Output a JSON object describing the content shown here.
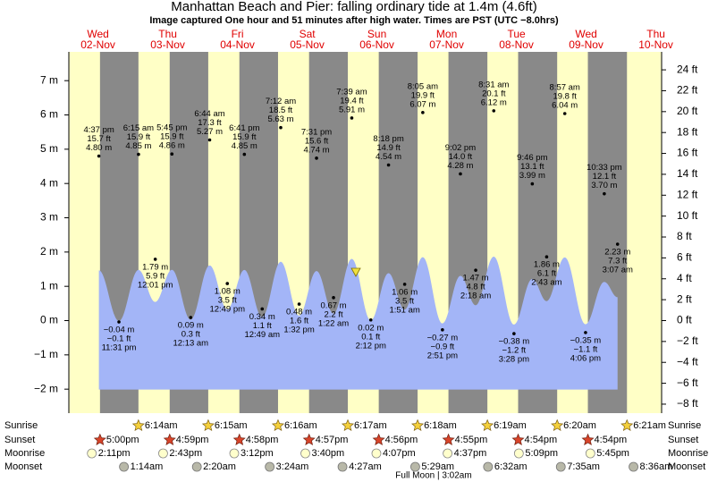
{
  "chart_data": {
    "type": "tide",
    "title": "Manhattan Beach and Pier: falling  ordinary tide at 1.4m (4.6ft)",
    "subtitle": "Image captured One hour and 51 minutes after high water. Times are PST (UTC −8.0hrs)",
    "ylim": [
      -2.7,
      7.84
    ],
    "yticks": [
      {
        "value": -2,
        "label": "−2 m"
      },
      {
        "value": -1,
        "label": "−1 m"
      },
      {
        "value": 0,
        "label": "0 m"
      },
      {
        "value": 1,
        "label": "1 m"
      },
      {
        "value": 2,
        "label": "2 m"
      },
      {
        "value": 3,
        "label": "3 m"
      },
      {
        "value": 4,
        "label": "4 m"
      },
      {
        "value": 5,
        "label": "5 m"
      },
      {
        "value": 6,
        "label": "6 m"
      },
      {
        "value": 7,
        "label": "7 m"
      }
    ],
    "y2lim": [
      -8.86,
      25.72
    ],
    "y2ticks": [
      {
        "value": -8,
        "label": "−8 ft"
      },
      {
        "value": -6,
        "label": "−6 ft"
      },
      {
        "value": -4,
        "label": "−4 ft"
      },
      {
        "value": -2,
        "label": "−2 ft"
      },
      {
        "value": 0,
        "label": "0 ft"
      },
      {
        "value": 2,
        "label": "2 ft"
      },
      {
        "value": 4,
        "label": "4 ft"
      },
      {
        "value": 6,
        "label": "6 ft"
      },
      {
        "value": 8,
        "label": "8 ft"
      },
      {
        "value": 10,
        "label": "10 ft"
      },
      {
        "value": 12,
        "label": "12 ft"
      },
      {
        "value": 14,
        "label": "14 ft"
      },
      {
        "value": 16,
        "label": "16 ft"
      },
      {
        "value": 18,
        "label": "18 ft"
      },
      {
        "value": 20,
        "label": "20 ft"
      },
      {
        "value": 22,
        "label": "22 ft"
      },
      {
        "value": 24,
        "label": "24 ft"
      }
    ],
    "curve_axis": "y2",
    "curve_color": "#a3b5f7",
    "night_color": "#898989",
    "day_color": "#ffffc6",
    "rows": [
      "Sunrise",
      "Sunset",
      "Moonrise",
      "Moonset"
    ],
    "full_moon": "Full Moon | 3:02am",
    "days": [
      {
        "dow": "Wed",
        "date": "02-Nov",
        "sunrise": null,
        "sunset": "5:00pm",
        "moonrise": "2:11pm",
        "moonset": null,
        "tides": [
          {
            "time": "4:37 pm",
            "height": 4.8,
            "height_label": "4.80 m",
            "feet_label": "15.7 ft"
          },
          {
            "time": "11:31 pm",
            "height": -0.04,
            "height_label": "−0.04 m",
            "feet_label": "−0.1 ft"
          }
        ]
      },
      {
        "dow": "Thu",
        "date": "03-Nov",
        "sunrise": "6:14am",
        "sunset": "4:59pm",
        "moonrise": "2:43pm",
        "moonset": "1:14am",
        "tides": [
          {
            "time": "6:15 am",
            "height": 4.85,
            "height_label": "4.85 m",
            "feet_label": "15.9 ft"
          },
          {
            "time": "12:01 pm",
            "height": 1.79,
            "height_label": "1.79 m",
            "feet_label": "5.9 ft"
          },
          {
            "time": "5:45 pm",
            "height": 4.86,
            "height_label": "4.86 m",
            "feet_label": "15.9 ft"
          }
        ]
      },
      {
        "dow": "Fri",
        "date": "04-Nov",
        "sunrise": "6:15am",
        "sunset": "4:58pm",
        "moonrise": "3:12pm",
        "moonset": "2:20am",
        "tides": [
          {
            "time": "12:13 am",
            "height": 0.09,
            "height_label": "0.09 m",
            "feet_label": "0.3 ft"
          },
          {
            "time": "6:44 am",
            "height": 5.27,
            "height_label": "5.27 m",
            "feet_label": "17.3 ft"
          },
          {
            "time": "12:49 pm",
            "height": 1.08,
            "height_label": "1.08 m",
            "feet_label": "3.5 ft"
          },
          {
            "time": "6:41 pm",
            "height": 4.85,
            "height_label": "4.85 m",
            "feet_label": "15.9 ft"
          }
        ]
      },
      {
        "dow": "Sat",
        "date": "05-Nov",
        "sunrise": "6:16am",
        "sunset": "4:57pm",
        "moonrise": "3:40pm",
        "moonset": "3:24am",
        "tides": [
          {
            "time": "12:49 am",
            "height": 0.34,
            "height_label": "0.34 m",
            "feet_label": "1.1 ft"
          },
          {
            "time": "7:12 am",
            "height": 5.63,
            "height_label": "5.63 m",
            "feet_label": "18.5 ft"
          },
          {
            "time": "1:32 pm",
            "height": 0.48,
            "height_label": "0.48 m",
            "feet_label": "1.6 ft"
          },
          {
            "time": "7:31 pm",
            "height": 4.74,
            "height_label": "4.74 m",
            "feet_label": "15.6 ft"
          }
        ]
      },
      {
        "dow": "Sun",
        "date": "06-Nov",
        "sunrise": "6:17am",
        "sunset": "4:56pm",
        "moonrise": "4:07pm",
        "moonset": "4:27am",
        "tides": [
          {
            "time": "1:22 am",
            "height": 0.67,
            "height_label": "0.67 m",
            "feet_label": "2.2 ft"
          },
          {
            "time": "7:39 am",
            "height": 5.91,
            "height_label": "5.91 m",
            "feet_label": "19.4 ft"
          },
          {
            "time": "2:12 pm",
            "height": 0.02,
            "height_label": "0.02 m",
            "feet_label": "0.1 ft"
          },
          {
            "time": "8:18 pm",
            "height": 4.54,
            "height_label": "4.54 m",
            "feet_label": "14.9 ft"
          }
        ]
      },
      {
        "dow": "Mon",
        "date": "07-Nov",
        "sunrise": "6:18am",
        "sunset": "4:55pm",
        "moonrise": "4:37pm",
        "moonset": "5:29am",
        "tides": [
          {
            "time": "1:51 am",
            "height": 1.06,
            "height_label": "1.06 m",
            "feet_label": "3.5 ft"
          },
          {
            "time": "8:05 am",
            "height": 6.07,
            "height_label": "6.07 m",
            "feet_label": "19.9 ft"
          },
          {
            "time": "2:51 pm",
            "height": -0.27,
            "height_label": "−0.27 m",
            "feet_label": "−0.9 ft"
          },
          {
            "time": "9:02 pm",
            "height": 4.28,
            "height_label": "4.28 m",
            "feet_label": "14.0 ft"
          }
        ]
      },
      {
        "dow": "Tue",
        "date": "08-Nov",
        "sunrise": "6:19am",
        "sunset": "4:54pm",
        "moonrise": "5:09pm",
        "moonset": "6:32am",
        "tides": [
          {
            "time": "2:18 am",
            "height": 1.47,
            "height_label": "1.47 m",
            "feet_label": "4.8 ft"
          },
          {
            "time": "8:31 am",
            "height": 6.12,
            "height_label": "6.12 m",
            "feet_label": "20.1 ft"
          },
          {
            "time": "3:28 pm",
            "height": -0.38,
            "height_label": "−0.38 m",
            "feet_label": "−1.2 ft"
          },
          {
            "time": "9:46 pm",
            "height": 3.99,
            "height_label": "3.99 m",
            "feet_label": "13.1 ft"
          }
        ]
      },
      {
        "dow": "Wed",
        "date": "09-Nov",
        "sunrise": "6:20am",
        "sunset": "4:54pm",
        "moonrise": "5:45pm",
        "moonset": "7:35am",
        "tides": [
          {
            "time": "2:43 am",
            "height": 1.86,
            "height_label": "1.86 m",
            "feet_label": "6.1 ft"
          },
          {
            "time": "8:57 am",
            "height": 6.04,
            "height_label": "6.04 m",
            "feet_label": "19.8 ft"
          },
          {
            "time": "4:06 pm",
            "height": -0.35,
            "height_label": "−0.35 m",
            "feet_label": "−1.1 ft"
          },
          {
            "time": "10:33 pm",
            "height": 3.7,
            "height_label": "3.70 m",
            "feet_label": "12.1 ft"
          }
        ]
      },
      {
        "dow": "Thu",
        "date": "10-Nov",
        "sunrise": "6:21am",
        "sunset": null,
        "moonrise": null,
        "moonset": "8:36am",
        "tides": [
          {
            "time": "3:07 am",
            "height": 2.23,
            "height_label": "2.23 m",
            "feet_label": "7.3 ft"
          }
        ]
      }
    ]
  }
}
